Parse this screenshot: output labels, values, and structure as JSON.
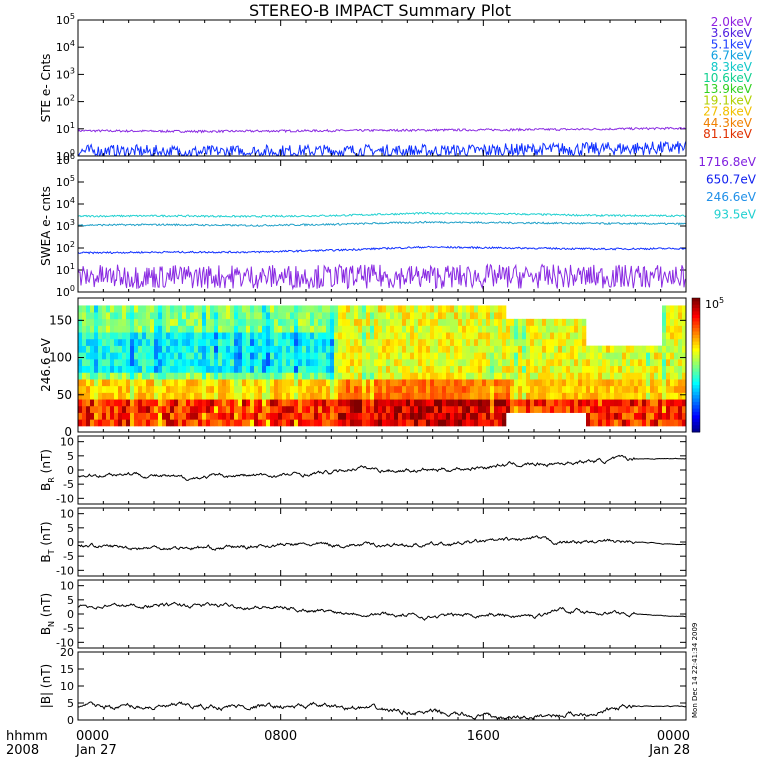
{
  "title": "STEREO-B IMPACT Summary Plot",
  "colors": {
    "axis": "#000000",
    "purple": "#8a2be2",
    "blue": "#1030ff",
    "cyan": "#20d0d0",
    "teal": "#20b0c8",
    "steel": "#3090e0"
  },
  "ste_legend": [
    {
      "label": "2.0keV",
      "color": "#9020e0"
    },
    {
      "label": "3.6keV",
      "color": "#5020e0"
    },
    {
      "label": "5.1keV",
      "color": "#2040ff"
    },
    {
      "label": "6.7keV",
      "color": "#10a0e0"
    },
    {
      "label": "8.3keV",
      "color": "#10c8c8"
    },
    {
      "label": "10.6keV",
      "color": "#10d090"
    },
    {
      "label": "13.9keV",
      "color": "#30d020"
    },
    {
      "label": "19.1keV",
      "color": "#b0d000"
    },
    {
      "label": "27.8keV",
      "color": "#f0c000"
    },
    {
      "label": "44.3keV",
      "color": "#f08000"
    },
    {
      "label": "81.1keV",
      "color": "#e03000"
    }
  ],
  "swea_legend": [
    {
      "label": "1716.8eV",
      "color": "#8020e0"
    },
    {
      "label": "650.7eV",
      "color": "#1020f0"
    },
    {
      "label": "246.6eV",
      "color": "#2090e8"
    },
    {
      "label": "93.5eV",
      "color": "#20d0d0"
    }
  ],
  "colorbar_label": "10",
  "colorbar_exp": "5",
  "timestamp": "Mon Dec 14 22:41:34 2009",
  "time_axis": {
    "left_label_top": "hhmm",
    "left_label_bottom": "2008",
    "ticks": [
      {
        "t": 0,
        "top": "0000",
        "bottom": "Jan 27"
      },
      {
        "t": 8,
        "top": "0800",
        "bottom": ""
      },
      {
        "t": 16,
        "top": "1600",
        "bottom": ""
      },
      {
        "t": 24,
        "top": "0000",
        "bottom": "Jan 28"
      }
    ]
  },
  "chart_data": [
    {
      "type": "line",
      "panel": "ste",
      "ylabel": "STE e- Cnts",
      "yscale": "log",
      "ylim": [
        1,
        100000
      ],
      "yticks": [
        "10^0",
        "10^1",
        "10^2",
        "10^3",
        "10^4",
        "10^5"
      ],
      "series": [
        {
          "name": "2.0keV",
          "level": 8.5,
          "trend": [
            8.5,
            8.0,
            8.5,
            9.0,
            9.5,
            10.5
          ],
          "color": "#8a2be2"
        },
        {
          "name": "5.1keV",
          "level": 1.2,
          "trend": [
            1.2,
            1.1,
            1.2,
            1.2,
            1.4,
            1.6
          ],
          "color": "#1030ff"
        }
      ]
    },
    {
      "type": "line",
      "panel": "swea",
      "ylabel": "SWEA e- cnts",
      "yscale": "log",
      "ylim": [
        1,
        1000000
      ],
      "yticks": [
        "10^0",
        "10^1",
        "10^2",
        "10^3",
        "10^4",
        "10^5",
        "10^6"
      ],
      "series": [
        {
          "name": "93.5eV",
          "trend": [
            2800,
            2900,
            2700,
            3000,
            3800,
            3500,
            3000,
            2900
          ],
          "color": "#20d0d0"
        },
        {
          "name": "246.6eV",
          "trend": [
            1100,
            1150,
            1050,
            1200,
            1500,
            1400,
            1300,
            1250
          ],
          "color": "#20a0c8"
        },
        {
          "name": "650.7eV",
          "trend": [
            60,
            65,
            65,
            80,
            110,
            100,
            90,
            95
          ],
          "color": "#1030ff"
        },
        {
          "name": "1716.8eV",
          "trend": [
            5,
            5,
            5,
            5,
            5,
            5,
            5,
            5
          ],
          "color": "#8a2be2"
        }
      ]
    },
    {
      "type": "heatmap",
      "panel": "pad",
      "ylabel": "246.6 eV",
      "ylim": [
        0,
        180
      ],
      "yticks": [
        0,
        50,
        100,
        150
      ],
      "colorbar_max": "10^5"
    },
    {
      "type": "line",
      "panel": "br",
      "ylabel": "B",
      "ylabel_sub": "R",
      "ylabel_unit": " (nT)",
      "ylim": [
        -12,
        12
      ],
      "yticks": [
        -10,
        -5,
        0,
        5,
        10
      ],
      "x": [
        0,
        2,
        4,
        6,
        8,
        10,
        11,
        12,
        14,
        16,
        17,
        18,
        20,
        22,
        24
      ],
      "values": [
        -2,
        -1,
        -3,
        -2,
        -2,
        -1,
        1,
        0,
        0,
        1,
        2,
        2,
        3,
        4,
        4
      ]
    },
    {
      "type": "line",
      "panel": "bt",
      "ylabel": "B",
      "ylabel_sub": "T",
      "ylabel_unit": " (nT)",
      "ylim": [
        -12,
        12
      ],
      "yticks": [
        -10,
        -5,
        0,
        5,
        10
      ],
      "x": [
        0,
        2,
        4,
        6,
        8,
        10,
        12,
        14,
        16,
        18,
        19,
        20,
        22,
        24
      ],
      "values": [
        -1,
        -2,
        -2,
        -2,
        -1,
        -1,
        -1,
        -1,
        0,
        1,
        0,
        0,
        0,
        -1
      ]
    },
    {
      "type": "line",
      "panel": "bn",
      "ylabel": "B",
      "ylabel_sub": "N",
      "ylabel_unit": " (nT)",
      "ylim": [
        -12,
        12
      ],
      "yticks": [
        -10,
        -5,
        0,
        5,
        10
      ],
      "x": [
        0,
        2,
        4,
        6,
        8,
        10,
        12,
        14,
        16,
        18,
        19,
        20,
        22,
        24
      ],
      "values": [
        3,
        3,
        3,
        3,
        2,
        1,
        0,
        -1,
        0,
        -1,
        2,
        1,
        0,
        -1
      ]
    },
    {
      "type": "line",
      "panel": "bmag",
      "ylabel": "|B| (nT)",
      "ylim": [
        0,
        20
      ],
      "yticks": [
        0,
        5,
        10,
        15,
        20
      ],
      "x": [
        0,
        2,
        4,
        6,
        8,
        10,
        12,
        14,
        16,
        17,
        18,
        20,
        22,
        24
      ],
      "values": [
        4,
        4,
        4,
        4,
        4,
        4,
        3,
        2,
        1,
        0.5,
        1,
        2,
        4,
        4
      ]
    }
  ]
}
